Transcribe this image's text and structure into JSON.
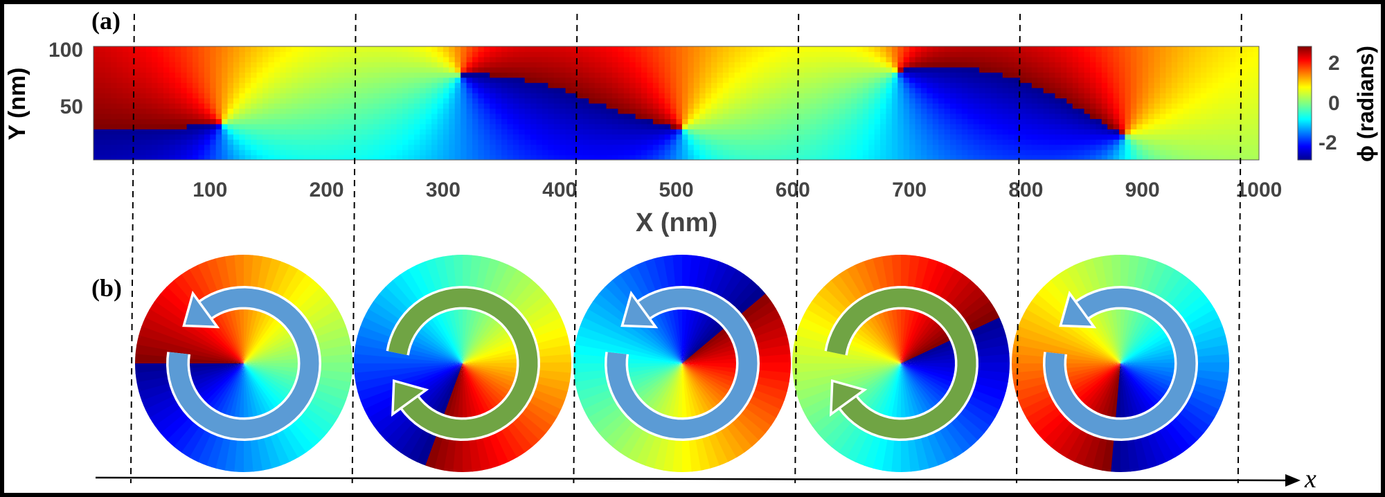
{
  "figure": {
    "panel_a_label": "(a)",
    "panel_b_label": "(b)",
    "x_axis_label": "X (nm)",
    "y_axis_label": "Y (nm)",
    "x_ticks": [
      "100",
      "200",
      "300",
      "400",
      "500",
      "600",
      "700",
      "800",
      "900",
      "1000"
    ],
    "y_ticks": [
      "100",
      "50"
    ],
    "colorbar_label": "ϕ (radians)",
    "colorbar_ticks": [
      "2",
      "0",
      "-2"
    ],
    "bottom_axis_label": "x"
  },
  "chart_data": {
    "type": "heatmap",
    "quantity": "phase",
    "units": "radians",
    "xlabel": "X (nm)",
    "ylabel": "Y (nm)",
    "xlim": [
      0,
      1000
    ],
    "ylim": [
      0,
      100
    ],
    "color_range": [
      -3.14159,
      3.14159
    ],
    "colormap": "jet",
    "vortices": [
      {
        "x": 110,
        "y": 32,
        "charge": 1
      },
      {
        "x": 315,
        "y": 75,
        "charge": -1
      },
      {
        "x": 505,
        "y": 28,
        "charge": 1
      },
      {
        "x": 690,
        "y": 78,
        "charge": -1
      },
      {
        "x": 885,
        "y": 22,
        "charge": 1
      }
    ],
    "dashed_lines_x": [
      35,
      225,
      415,
      605,
      795,
      985
    ],
    "insets": [
      {
        "index": 1,
        "rotation": "counterclockwise",
        "arrow_color": "#5b9bd5"
      },
      {
        "index": 2,
        "rotation": "clockwise",
        "arrow_color": "#70a444"
      },
      {
        "index": 3,
        "rotation": "counterclockwise",
        "arrow_color": "#5b9bd5"
      },
      {
        "index": 4,
        "rotation": "clockwise",
        "arrow_color": "#70a444"
      },
      {
        "index": 5,
        "rotation": "counterclockwise",
        "arrow_color": "#5b9bd5"
      }
    ]
  }
}
